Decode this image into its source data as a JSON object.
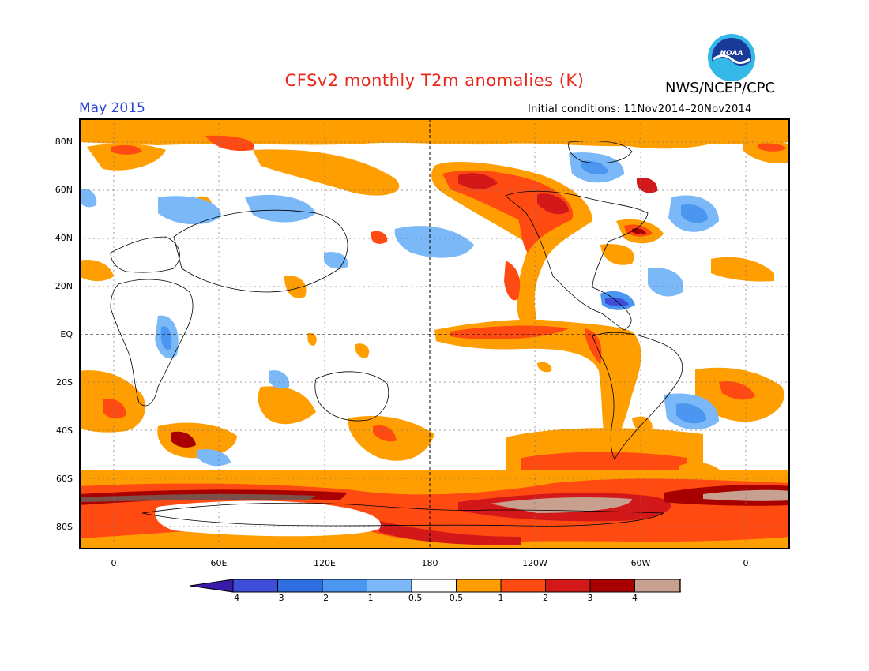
{
  "title": "CFSv2 monthly T2m anomalies (K)",
  "agency": "NWS/NCEP/CPC",
  "logo_text": "NOAA",
  "valid_month": "May 2015",
  "initial_conditions": "Initial conditions: 11Nov2014–20Nov2014",
  "x_ticks": [
    "0",
    "60E",
    "120E",
    "180",
    "120W",
    "60W",
    "0"
  ],
  "y_ticks": [
    "80N",
    "60N",
    "40N",
    "20N",
    "EQ",
    "20S",
    "40S",
    "60S",
    "80S"
  ],
  "colorbar": {
    "labels": [
      "−4",
      "−3",
      "−2",
      "−1",
      "−0.5",
      "0.5",
      "1",
      "2",
      "3",
      "4"
    ],
    "colors": [
      "#3a1aa8",
      "#3e4ed8",
      "#2e6ee0",
      "#4a96f0",
      "#7ab8f8",
      "#ffffff",
      "#ff9e00",
      "#ff4a12",
      "#d21818",
      "#a80000",
      "#c8a090",
      "#7a5048"
    ]
  }
}
